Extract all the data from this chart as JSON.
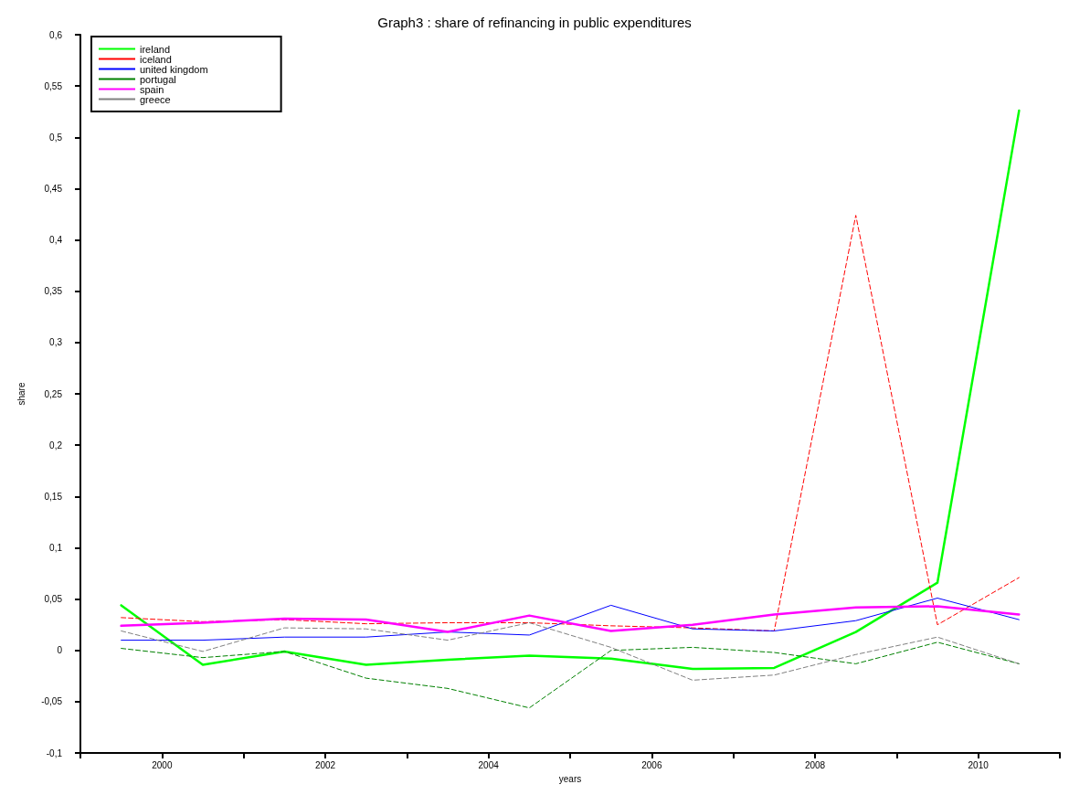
{
  "chart_data": {
    "type": "line",
    "title": "Graph3 : share of refinancing in public expenditures",
    "xlabel": "years",
    "ylabel": "share",
    "x": [
      1999.5,
      2000.5,
      2001.5,
      2002.5,
      2003.5,
      2004.5,
      2005.5,
      2006.5,
      2007.5,
      2008.5,
      2009.5,
      2010.5
    ],
    "series": [
      {
        "name": "ireland",
        "color": "#00ff00",
        "line_style": "solid",
        "values": [
          0.044,
          -0.014,
          -0.001,
          -0.014,
          -0.009,
          -0.005,
          -0.008,
          -0.018,
          -0.017,
          0.018,
          0.066,
          0.526
        ]
      },
      {
        "name": "iceland",
        "color": "#ff0000",
        "line_style": "dashed",
        "values": [
          0.032,
          0.028,
          0.03,
          0.026,
          0.027,
          0.027,
          0.024,
          0.022,
          0.019,
          0.424,
          0.025,
          0.071
        ]
      },
      {
        "name": "united kingdom",
        "color": "#0000ff",
        "line_style": "solid",
        "values": [
          0.01,
          0.01,
          0.013,
          0.013,
          0.018,
          0.015,
          0.044,
          0.021,
          0.019,
          0.029,
          0.051,
          0.03
        ]
      },
      {
        "name": "portugal",
        "color": "#008000",
        "line_style": "dashed",
        "values": [
          0.002,
          -0.007,
          -0.001,
          -0.027,
          -0.037,
          -0.056,
          0.0,
          0.003,
          -0.002,
          -0.013,
          0.008,
          -0.013
        ]
      },
      {
        "name": "spain",
        "color": "#ff00ff",
        "line_style": "solid",
        "values": [
          0.024,
          0.027,
          0.031,
          0.03,
          0.018,
          0.034,
          0.019,
          0.025,
          0.035,
          0.042,
          0.043,
          0.035
        ]
      },
      {
        "name": "greece",
        "color": "#808080",
        "line_style": "dashed",
        "values": [
          0.019,
          -0.001,
          0.022,
          0.021,
          0.01,
          0.027,
          0.003,
          -0.029,
          -0.024,
          -0.004,
          0.013,
          -0.013
        ]
      }
    ],
    "xlim": [
      1999,
      2011
    ],
    "xticks": [
      {
        "value": 1999,
        "label": null
      },
      2000,
      {
        "value": 2001,
        "label": null
      },
      2002,
      {
        "value": 2003,
        "label": null
      },
      2004,
      {
        "value": 2005,
        "label": null
      },
      2006,
      {
        "value": 2007,
        "label": null
      },
      2008,
      {
        "value": 2009,
        "label": null
      },
      2010,
      {
        "value": 2011,
        "label": null
      }
    ],
    "ylim": [
      -0.1,
      0.6
    ],
    "yticks": [
      {
        "value": -0.1,
        "label": "-0,1"
      },
      {
        "value": -0.05,
        "label": "-0,05"
      },
      0,
      {
        "value": 0.05,
        "label": "0,05"
      },
      {
        "value": 0.1,
        "label": "0,1"
      },
      {
        "value": 0.15,
        "label": "0,15"
      },
      {
        "value": 0.2,
        "label": "0,2"
      },
      {
        "value": 0.25,
        "label": "0,25"
      },
      {
        "value": 0.3,
        "label": "0,3"
      },
      {
        "value": 0.35,
        "label": "0,35"
      },
      {
        "value": 0.4,
        "label": "0,4"
      },
      {
        "value": 0.45,
        "label": "0,45"
      },
      {
        "value": 0.5,
        "label": "0,5"
      },
      {
        "value": 0.55,
        "label": "0,55"
      },
      {
        "value": 0.6,
        "label": "0,6"
      }
    ],
    "grid": false,
    "legend": "top left",
    "marker": "none"
  }
}
